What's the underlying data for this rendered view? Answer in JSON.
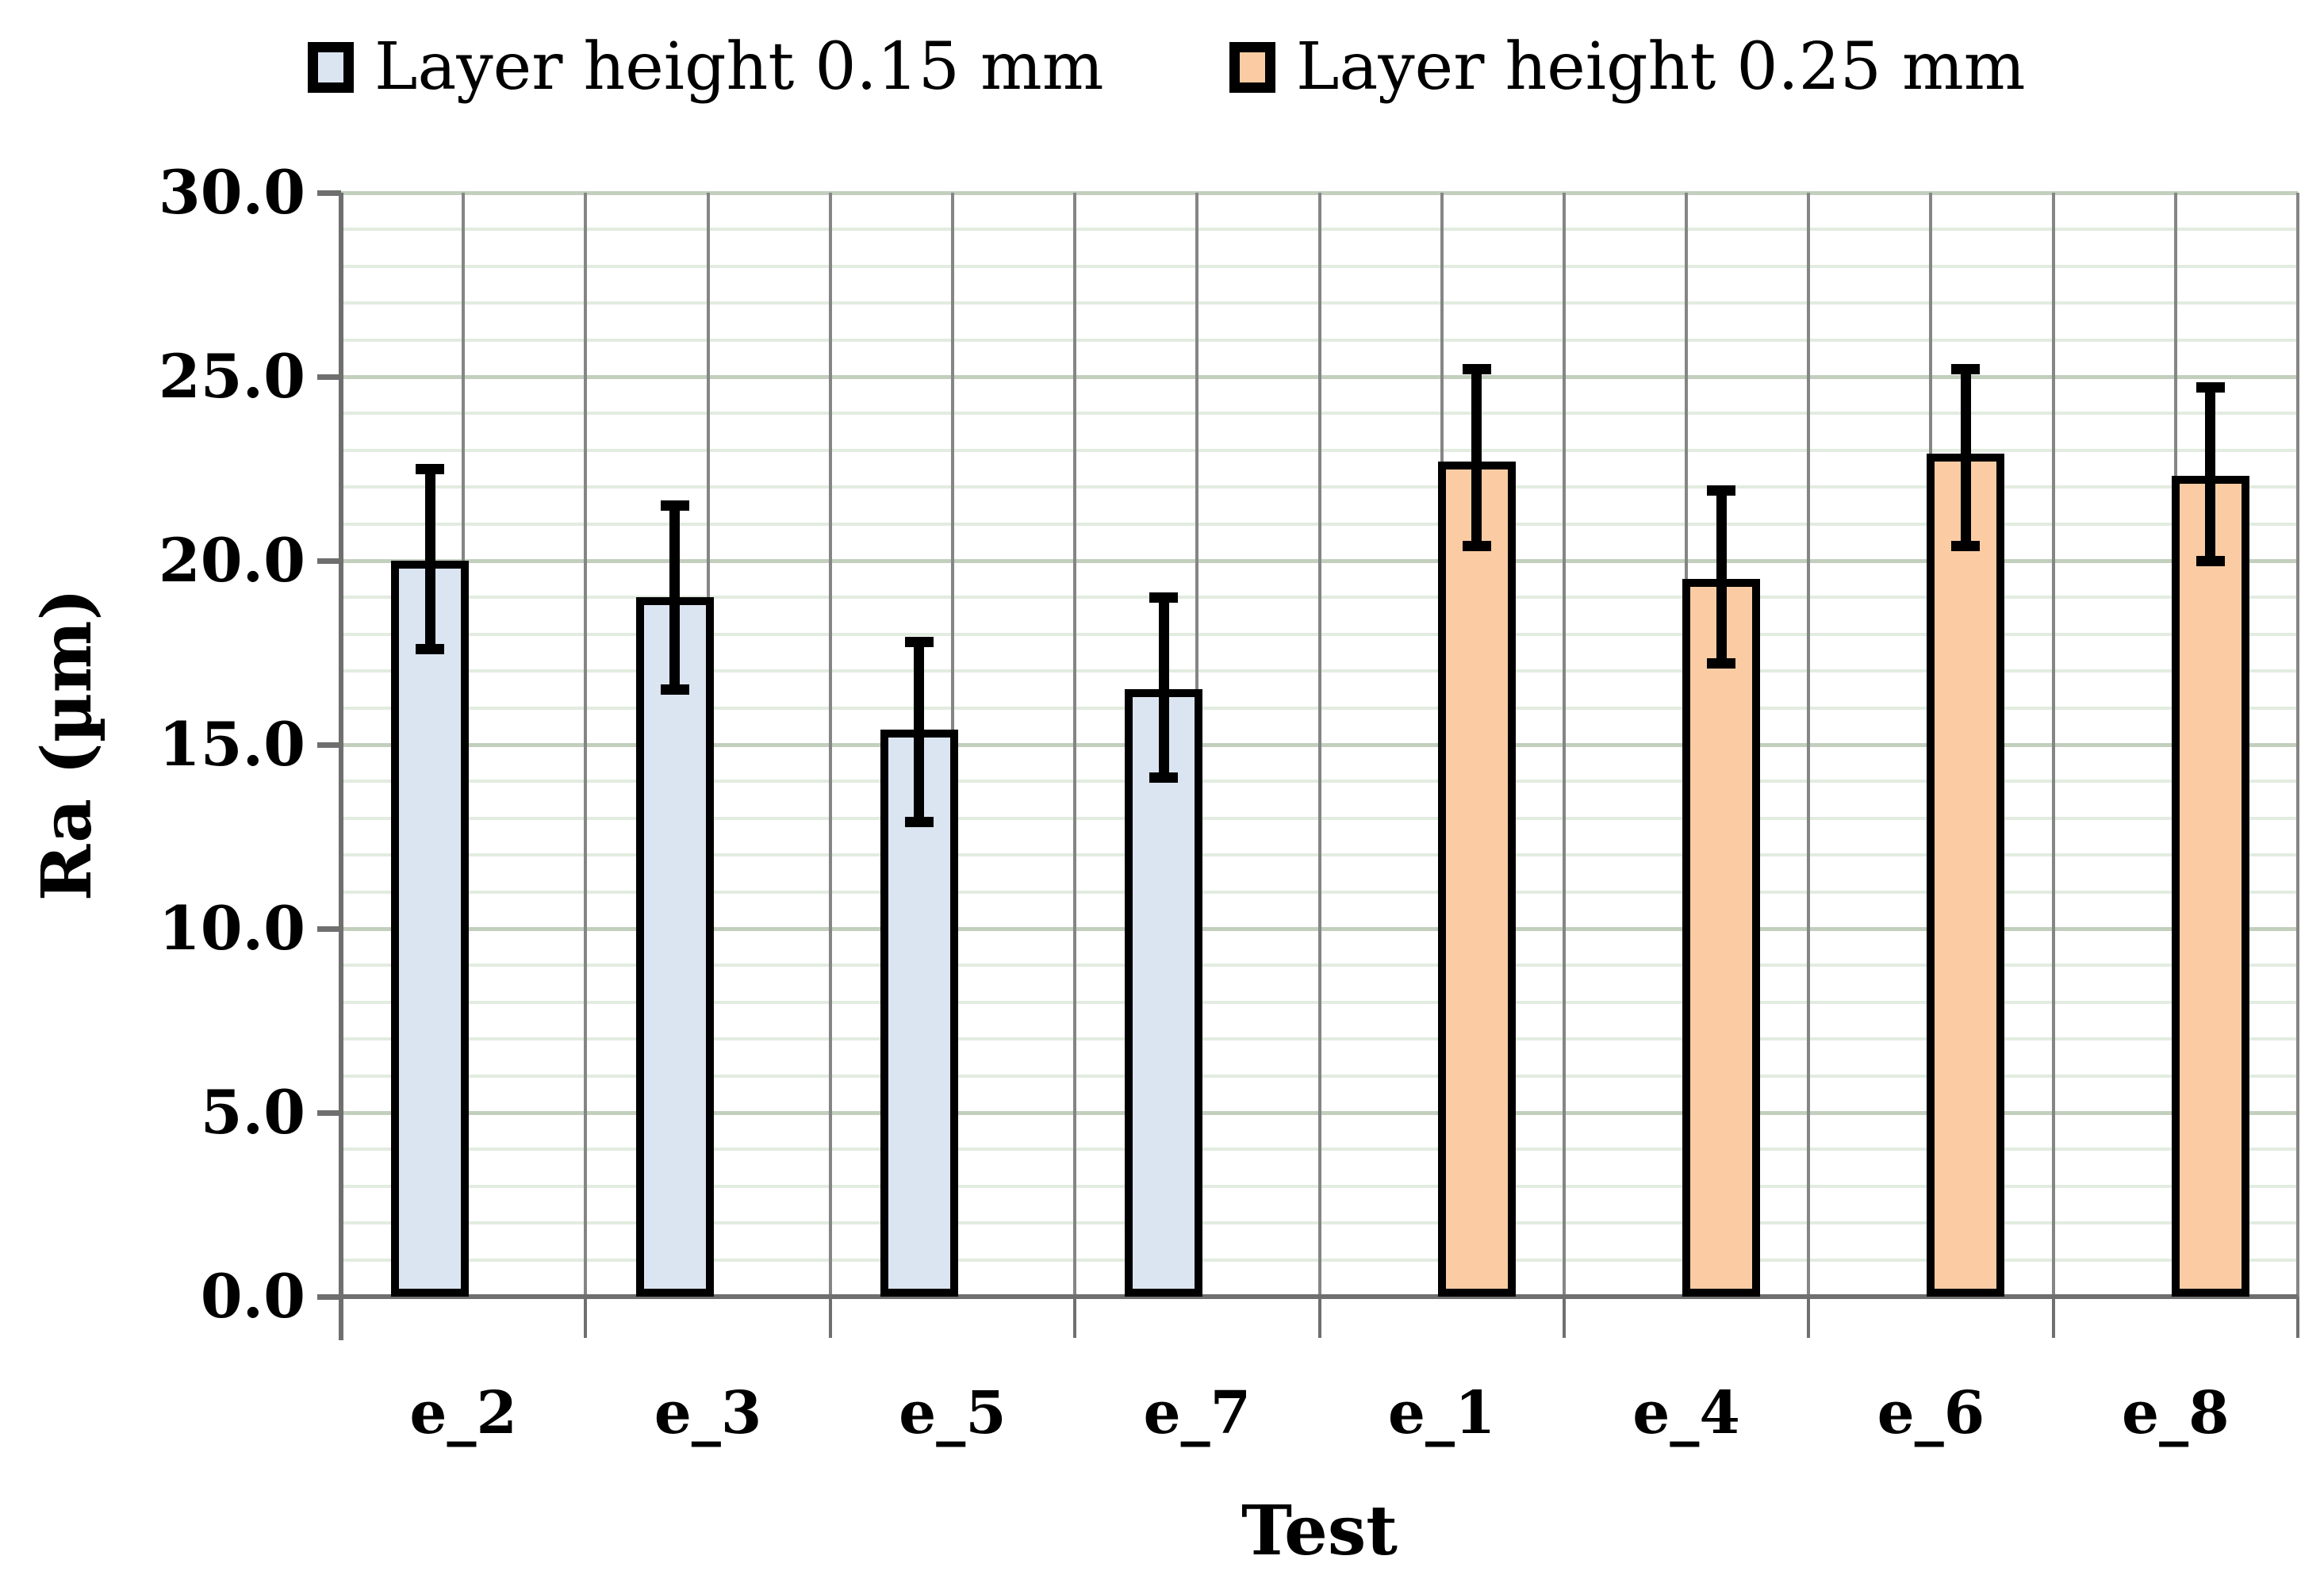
{
  "chart_data": {
    "type": "bar",
    "title": "",
    "xlabel": "Test",
    "ylabel": "Ra (µm)",
    "ylim": [
      0,
      30
    ],
    "y_tick_labels": [
      "0.0",
      "5.0",
      "10.0",
      "15.0",
      "20.0",
      "25.0",
      "30.0"
    ],
    "y_major_step": 5,
    "y_minor_step": 1,
    "legend_position": "top",
    "grid": {
      "horizontal_minor": true,
      "horizontal_major": true,
      "vertical_half_category": true
    },
    "categories": [
      "e_2",
      "e_3",
      "e_5",
      "e_7",
      "e_1",
      "e_4",
      "e_6",
      "e_8"
    ],
    "series": [
      {
        "name": "Layer height 0.15 mm",
        "fill_color": "#dbe5f1",
        "border_color": "#000000",
        "values": [
          20.0,
          19.0,
          15.4,
          16.5,
          null,
          null,
          null,
          null
        ],
        "error_low": [
          17.6,
          16.5,
          12.9,
          14.1,
          null,
          null,
          null,
          null
        ],
        "error_high": [
          22.5,
          21.5,
          17.8,
          19.0,
          null,
          null,
          null,
          null
        ]
      },
      {
        "name": "Layer height 0.25 mm",
        "fill_color": "#fbcca4",
        "border_color": "#000000",
        "values": [
          null,
          null,
          null,
          null,
          22.7,
          19.5,
          22.9,
          22.3
        ],
        "error_low": [
          null,
          null,
          null,
          null,
          20.4,
          17.2,
          20.4,
          20.0
        ],
        "error_high": [
          null,
          null,
          null,
          null,
          25.2,
          21.9,
          25.2,
          24.7
        ]
      }
    ]
  },
  "colors": {
    "background": "#ffffff",
    "axis": "#6f6f6f",
    "vertical_gridline": "#858585",
    "minor_gridline": "#e2ece0",
    "major_gridline": "#c2cfbd",
    "error_bar": "#000000",
    "text": "#000000"
  }
}
